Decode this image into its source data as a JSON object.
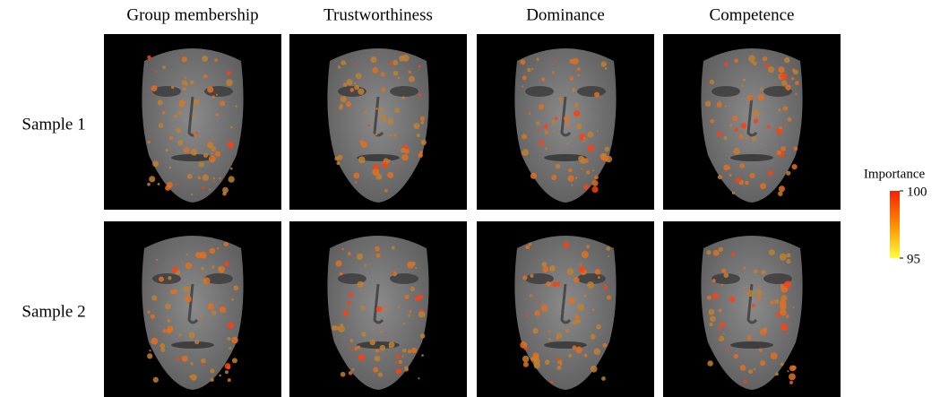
{
  "columns": [
    "Group membership",
    "Trustworthiness",
    "Dominance",
    "Competence"
  ],
  "rows": [
    "Sample 1",
    "Sample 2"
  ],
  "colorbar": {
    "title": "Importance",
    "ticks": [
      100,
      95
    ]
  }
}
